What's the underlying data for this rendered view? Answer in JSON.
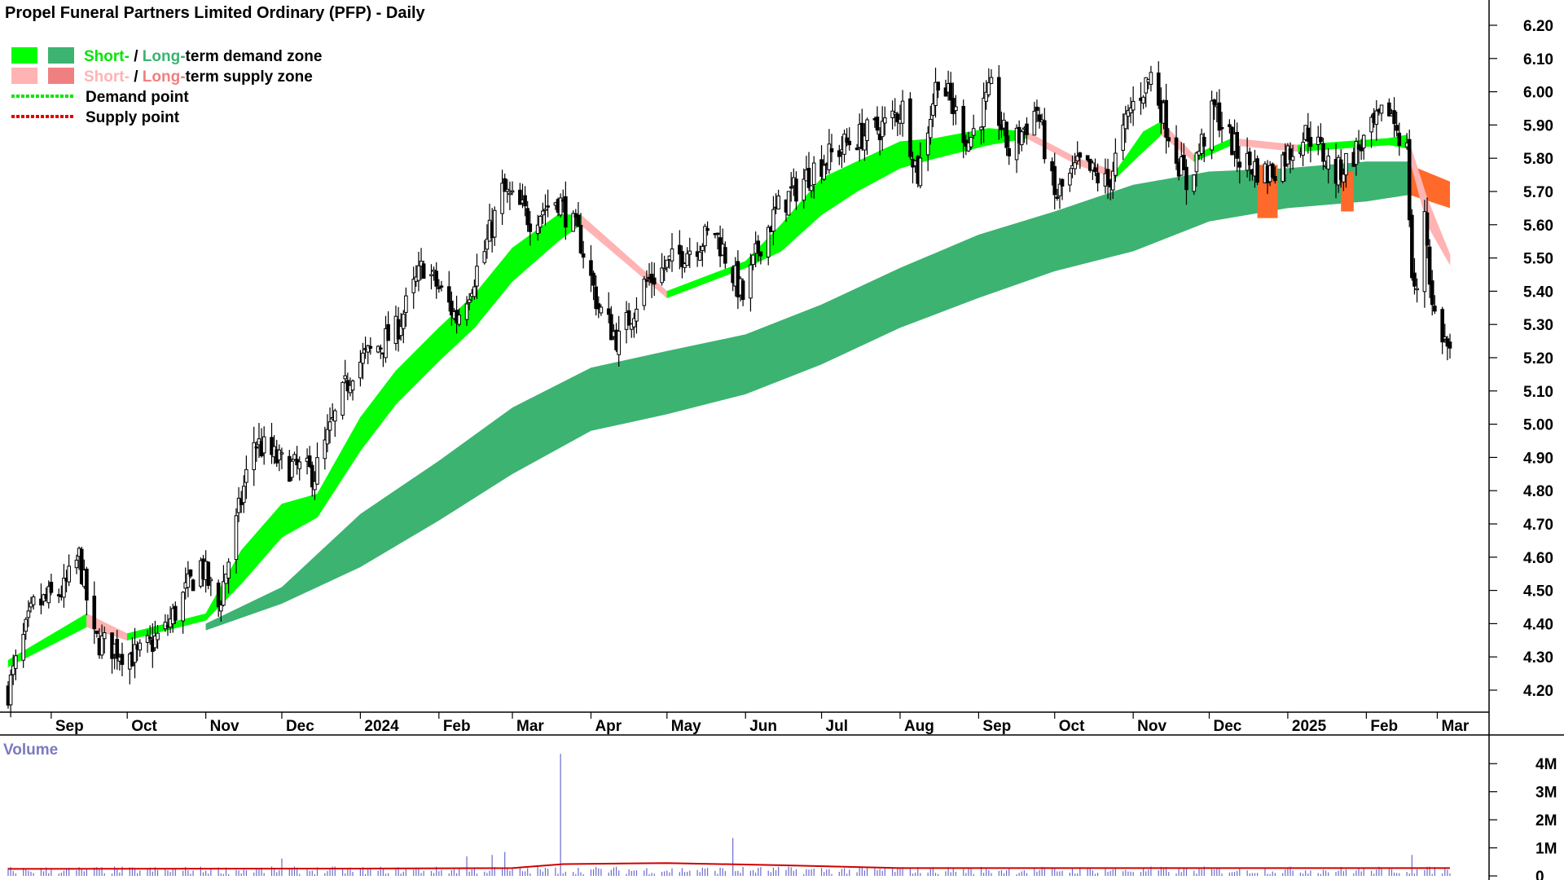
{
  "chart_data": {
    "type": "candlestick",
    "title": "Propel Funeral Partners Limited Ordinary (PFP) - Daily",
    "legend": [
      {
        "swatches": [
          "#00ff00",
          "#3cb371"
        ],
        "parts": [
          {
            "text": "Short-",
            "color": "#00e600"
          },
          {
            "text": " / ",
            "color": "#000000"
          },
          {
            "text": "Long-",
            "color": "#3cb371"
          },
          {
            "text": "term demand zone",
            "color": "#000000"
          }
        ]
      },
      {
        "swatches": [
          "#ffb3b3",
          "#f08080"
        ],
        "parts": [
          {
            "text": "Short-",
            "color": "#ffb3b3"
          },
          {
            "text": " / ",
            "color": "#000000"
          },
          {
            "text": "Long-",
            "color": "#f08080"
          },
          {
            "text": "term supply zone",
            "color": "#000000"
          }
        ]
      },
      {
        "line": "#00e600",
        "parts": [
          {
            "text": "Demand point",
            "color": "#000000"
          }
        ]
      },
      {
        "line": "#e00000",
        "parts": [
          {
            "text": "Supply point",
            "color": "#000000"
          }
        ]
      }
    ],
    "price_axis": {
      "min": 4.15,
      "max": 6.25,
      "ticks": [
        "4.20",
        "4.30",
        "4.40",
        "4.50",
        "4.60",
        "4.70",
        "4.80",
        "4.90",
        "5.00",
        "5.10",
        "5.20",
        "5.30",
        "5.40",
        "5.50",
        "5.60",
        "5.70",
        "5.80",
        "5.90",
        "6.00",
        "6.10",
        "6.20"
      ]
    },
    "x_axis": {
      "start": "2023-08-15",
      "end": "2025-03-06",
      "months": [
        {
          "label": "Sep",
          "date": "2023-09-01"
        },
        {
          "label": "Oct",
          "date": "2023-10-01"
        },
        {
          "label": "Nov",
          "date": "2023-11-01"
        },
        {
          "label": "Dec",
          "date": "2023-12-01"
        },
        {
          "label": "2024",
          "date": "2024-01-01"
        },
        {
          "label": "Feb",
          "date": "2024-02-01"
        },
        {
          "label": "Mar",
          "date": "2024-03-01"
        },
        {
          "label": "Apr",
          "date": "2024-04-01"
        },
        {
          "label": "May",
          "date": "2024-05-01"
        },
        {
          "label": "Jun",
          "date": "2024-06-01"
        },
        {
          "label": "Jul",
          "date": "2024-07-01"
        },
        {
          "label": "Aug",
          "date": "2024-08-01"
        },
        {
          "label": "Sep",
          "date": "2024-09-01"
        },
        {
          "label": "Oct",
          "date": "2024-10-01"
        },
        {
          "label": "Nov",
          "date": "2024-11-01"
        },
        {
          "label": "Dec",
          "date": "2024-12-01"
        },
        {
          "label": "2025",
          "date": "2025-01-01"
        },
        {
          "label": "Feb",
          "date": "2025-02-01"
        },
        {
          "label": "Mar",
          "date": "2025-03-01"
        }
      ]
    },
    "price_path": [
      [
        "2023-08-15",
        4.2
      ],
      [
        "2023-08-25",
        4.45
      ],
      [
        "2023-09-06",
        4.5
      ],
      [
        "2023-09-12",
        4.6
      ],
      [
        "2023-09-18",
        4.35
      ],
      [
        "2023-10-05",
        4.3
      ],
      [
        "2023-10-16",
        4.38
      ],
      [
        "2023-10-30",
        4.58
      ],
      [
        "2023-11-06",
        4.45
      ],
      [
        "2023-11-20",
        4.95
      ],
      [
        "2023-12-01",
        4.88
      ],
      [
        "2023-12-14",
        4.85
      ],
      [
        "2023-12-29",
        5.17
      ],
      [
        "2024-01-15",
        5.28
      ],
      [
        "2024-01-26",
        5.48
      ],
      [
        "2024-02-08",
        5.32
      ],
      [
        "2024-02-19",
        5.52
      ],
      [
        "2024-02-26",
        5.7
      ],
      [
        "2024-03-08",
        5.62
      ],
      [
        "2024-03-19",
        5.68
      ],
      [
        "2024-03-28",
        5.55
      ],
      [
        "2024-04-04",
        5.35
      ],
      [
        "2024-04-12",
        5.25
      ],
      [
        "2024-04-22",
        5.42
      ],
      [
        "2024-05-08",
        5.52
      ],
      [
        "2024-05-20",
        5.58
      ],
      [
        "2024-05-31",
        5.38
      ],
      [
        "2024-06-07",
        5.55
      ],
      [
        "2024-06-14",
        5.65
      ],
      [
        "2024-06-28",
        5.77
      ],
      [
        "2024-07-12",
        5.85
      ],
      [
        "2024-07-26",
        5.9
      ],
      [
        "2024-08-02",
        5.95
      ],
      [
        "2024-08-08",
        5.75
      ],
      [
        "2024-08-16",
        6.05
      ],
      [
        "2024-08-28",
        5.85
      ],
      [
        "2024-09-06",
        6.0
      ],
      [
        "2024-09-13",
        5.82
      ],
      [
        "2024-09-24",
        5.95
      ],
      [
        "2024-10-01",
        5.68
      ],
      [
        "2024-10-11",
        5.78
      ],
      [
        "2024-10-22",
        5.72
      ],
      [
        "2024-10-31",
        5.95
      ],
      [
        "2024-11-08",
        6.05
      ],
      [
        "2024-11-15",
        5.88
      ],
      [
        "2024-11-22",
        5.72
      ],
      [
        "2024-12-03",
        5.95
      ],
      [
        "2024-12-13",
        5.8
      ],
      [
        "2024-12-24",
        5.75
      ],
      [
        "2025-01-09",
        5.88
      ],
      [
        "2025-01-20",
        5.75
      ],
      [
        "2025-01-31",
        5.85
      ],
      [
        "2025-02-10",
        5.95
      ],
      [
        "2025-02-17",
        5.82
      ],
      [
        "2025-02-19",
        5.45
      ],
      [
        "2025-02-21",
        5.38
      ],
      [
        "2025-02-24",
        5.65
      ],
      [
        "2025-02-27",
        5.35
      ],
      [
        "2025-03-06",
        5.21
      ]
    ],
    "long_term_zone": [
      [
        "2023-11-01",
        4.4,
        4.38
      ],
      [
        "2023-12-01",
        4.51,
        4.46
      ],
      [
        "2024-01-01",
        4.73,
        4.57
      ],
      [
        "2024-02-01",
        4.89,
        4.71
      ],
      [
        "2024-03-01",
        5.05,
        4.85
      ],
      [
        "2024-04-01",
        5.17,
        4.98
      ],
      [
        "2024-05-01",
        5.22,
        5.03
      ],
      [
        "2024-06-01",
        5.27,
        5.09
      ],
      [
        "2024-07-01",
        5.36,
        5.18
      ],
      [
        "2024-08-01",
        5.47,
        5.29
      ],
      [
        "2024-09-01",
        5.57,
        5.38
      ],
      [
        "2024-10-01",
        5.64,
        5.46
      ],
      [
        "2024-11-01",
        5.72,
        5.52
      ],
      [
        "2024-12-01",
        5.76,
        5.61
      ],
      [
        "2025-01-01",
        5.77,
        5.65
      ],
      [
        "2025-02-01",
        5.79,
        5.67
      ],
      [
        "2025-02-18",
        5.79,
        5.69
      ]
    ],
    "long_term_supply": [
      [
        "2025-02-18",
        5.78,
        5.69
      ],
      [
        "2025-03-06",
        5.73,
        5.65
      ]
    ],
    "short_term_zone": [
      [
        "2023-08-15",
        4.29,
        4.27
      ],
      [
        "2023-09-15",
        4.43,
        4.39
      ],
      [
        "2023-10-01",
        4.37,
        4.35
      ],
      [
        "2023-11-01",
        4.43,
        4.41
      ],
      [
        "2023-11-15",
        4.62,
        4.52
      ],
      [
        "2023-12-01",
        4.76,
        4.66
      ],
      [
        "2023-12-15",
        4.79,
        4.72
      ],
      [
        "2024-01-01",
        5.02,
        4.92
      ],
      [
        "2024-01-15",
        5.16,
        5.06
      ],
      [
        "2024-02-01",
        5.29,
        5.19
      ],
      [
        "2024-02-15",
        5.39,
        5.29
      ],
      [
        "2024-03-01",
        5.53,
        5.43
      ],
      [
        "2024-03-19",
        5.63,
        5.55
      ],
      [
        "2024-03-28",
        5.63,
        5.6
      ],
      [
        "2024-05-01",
        5.4,
        5.38
      ],
      [
        "2024-06-01",
        5.49,
        5.47
      ],
      [
        "2024-06-15",
        5.6,
        5.52
      ],
      [
        "2024-07-01",
        5.74,
        5.63
      ],
      [
        "2024-07-15",
        5.79,
        5.7
      ],
      [
        "2024-08-01",
        5.85,
        5.77
      ],
      [
        "2024-08-15",
        5.86,
        5.8
      ],
      [
        "2024-09-05",
        5.89,
        5.84
      ],
      [
        "2024-09-20",
        5.88,
        5.86
      ],
      [
        "2024-10-10",
        5.8,
        5.78
      ],
      [
        "2024-10-25",
        5.76,
        5.74
      ],
      [
        "2024-11-05",
        5.88,
        5.82
      ],
      [
        "2024-11-12",
        5.91,
        5.87
      ],
      [
        "2024-11-25",
        5.81,
        5.79
      ],
      [
        "2024-12-10",
        5.86,
        5.84
      ],
      [
        "2025-01-05",
        5.84,
        5.82
      ],
      [
        "2025-02-10",
        5.86,
        5.84
      ],
      [
        "2025-02-17",
        5.87,
        5.83
      ],
      [
        "2025-02-25",
        5.68,
        5.6
      ],
      [
        "2025-03-06",
        5.51,
        5.48
      ]
    ],
    "supply_blocks": [
      {
        "from": "2024-12-20",
        "to": "2024-12-28",
        "top": 5.78,
        "bottom": 5.62
      },
      {
        "from": "2025-01-22",
        "to": "2025-01-27",
        "top": 5.76,
        "bottom": 5.64
      }
    ],
    "volume_axis": {
      "title": "Volume",
      "min": 0,
      "max": 4500000,
      "ticks": [
        {
          "label": "4M",
          "value": 4000000
        },
        {
          "label": "3M",
          "value": 3000000
        },
        {
          "label": "2M",
          "value": 2000000
        },
        {
          "label": "1M",
          "value": 1000000
        },
        {
          "label": "0",
          "value": 0
        }
      ]
    },
    "volume_spikes": [
      {
        "date": "2024-03-20",
        "value": 4350000
      },
      {
        "date": "2024-05-27",
        "value": 1350000
      },
      {
        "date": "2024-02-27",
        "value": 850000
      },
      {
        "date": "2024-02-12",
        "value": 700000
      },
      {
        "date": "2024-02-22",
        "value": 750000
      },
      {
        "date": "2025-02-19",
        "value": 750000
      },
      {
        "date": "2023-12-01",
        "value": 620000
      }
    ],
    "volume_ma": [
      [
        "2023-08-15",
        250000
      ],
      [
        "2024-01-01",
        260000
      ],
      [
        "2024-03-01",
        280000
      ],
      [
        "2024-03-21",
        420000
      ],
      [
        "2024-05-01",
        460000
      ],
      [
        "2024-06-15",
        380000
      ],
      [
        "2024-08-01",
        280000
      ],
      [
        "2025-03-06",
        280000
      ]
    ],
    "colors": {
      "demand_short": "#00ff00",
      "demand_long": "#3cb371",
      "supply_short": "#ffb3b3",
      "supply_long": "#f08080",
      "transition": "#ff6a2a",
      "volume": "#6b6bcc",
      "volume_ma": "#d00000"
    }
  }
}
